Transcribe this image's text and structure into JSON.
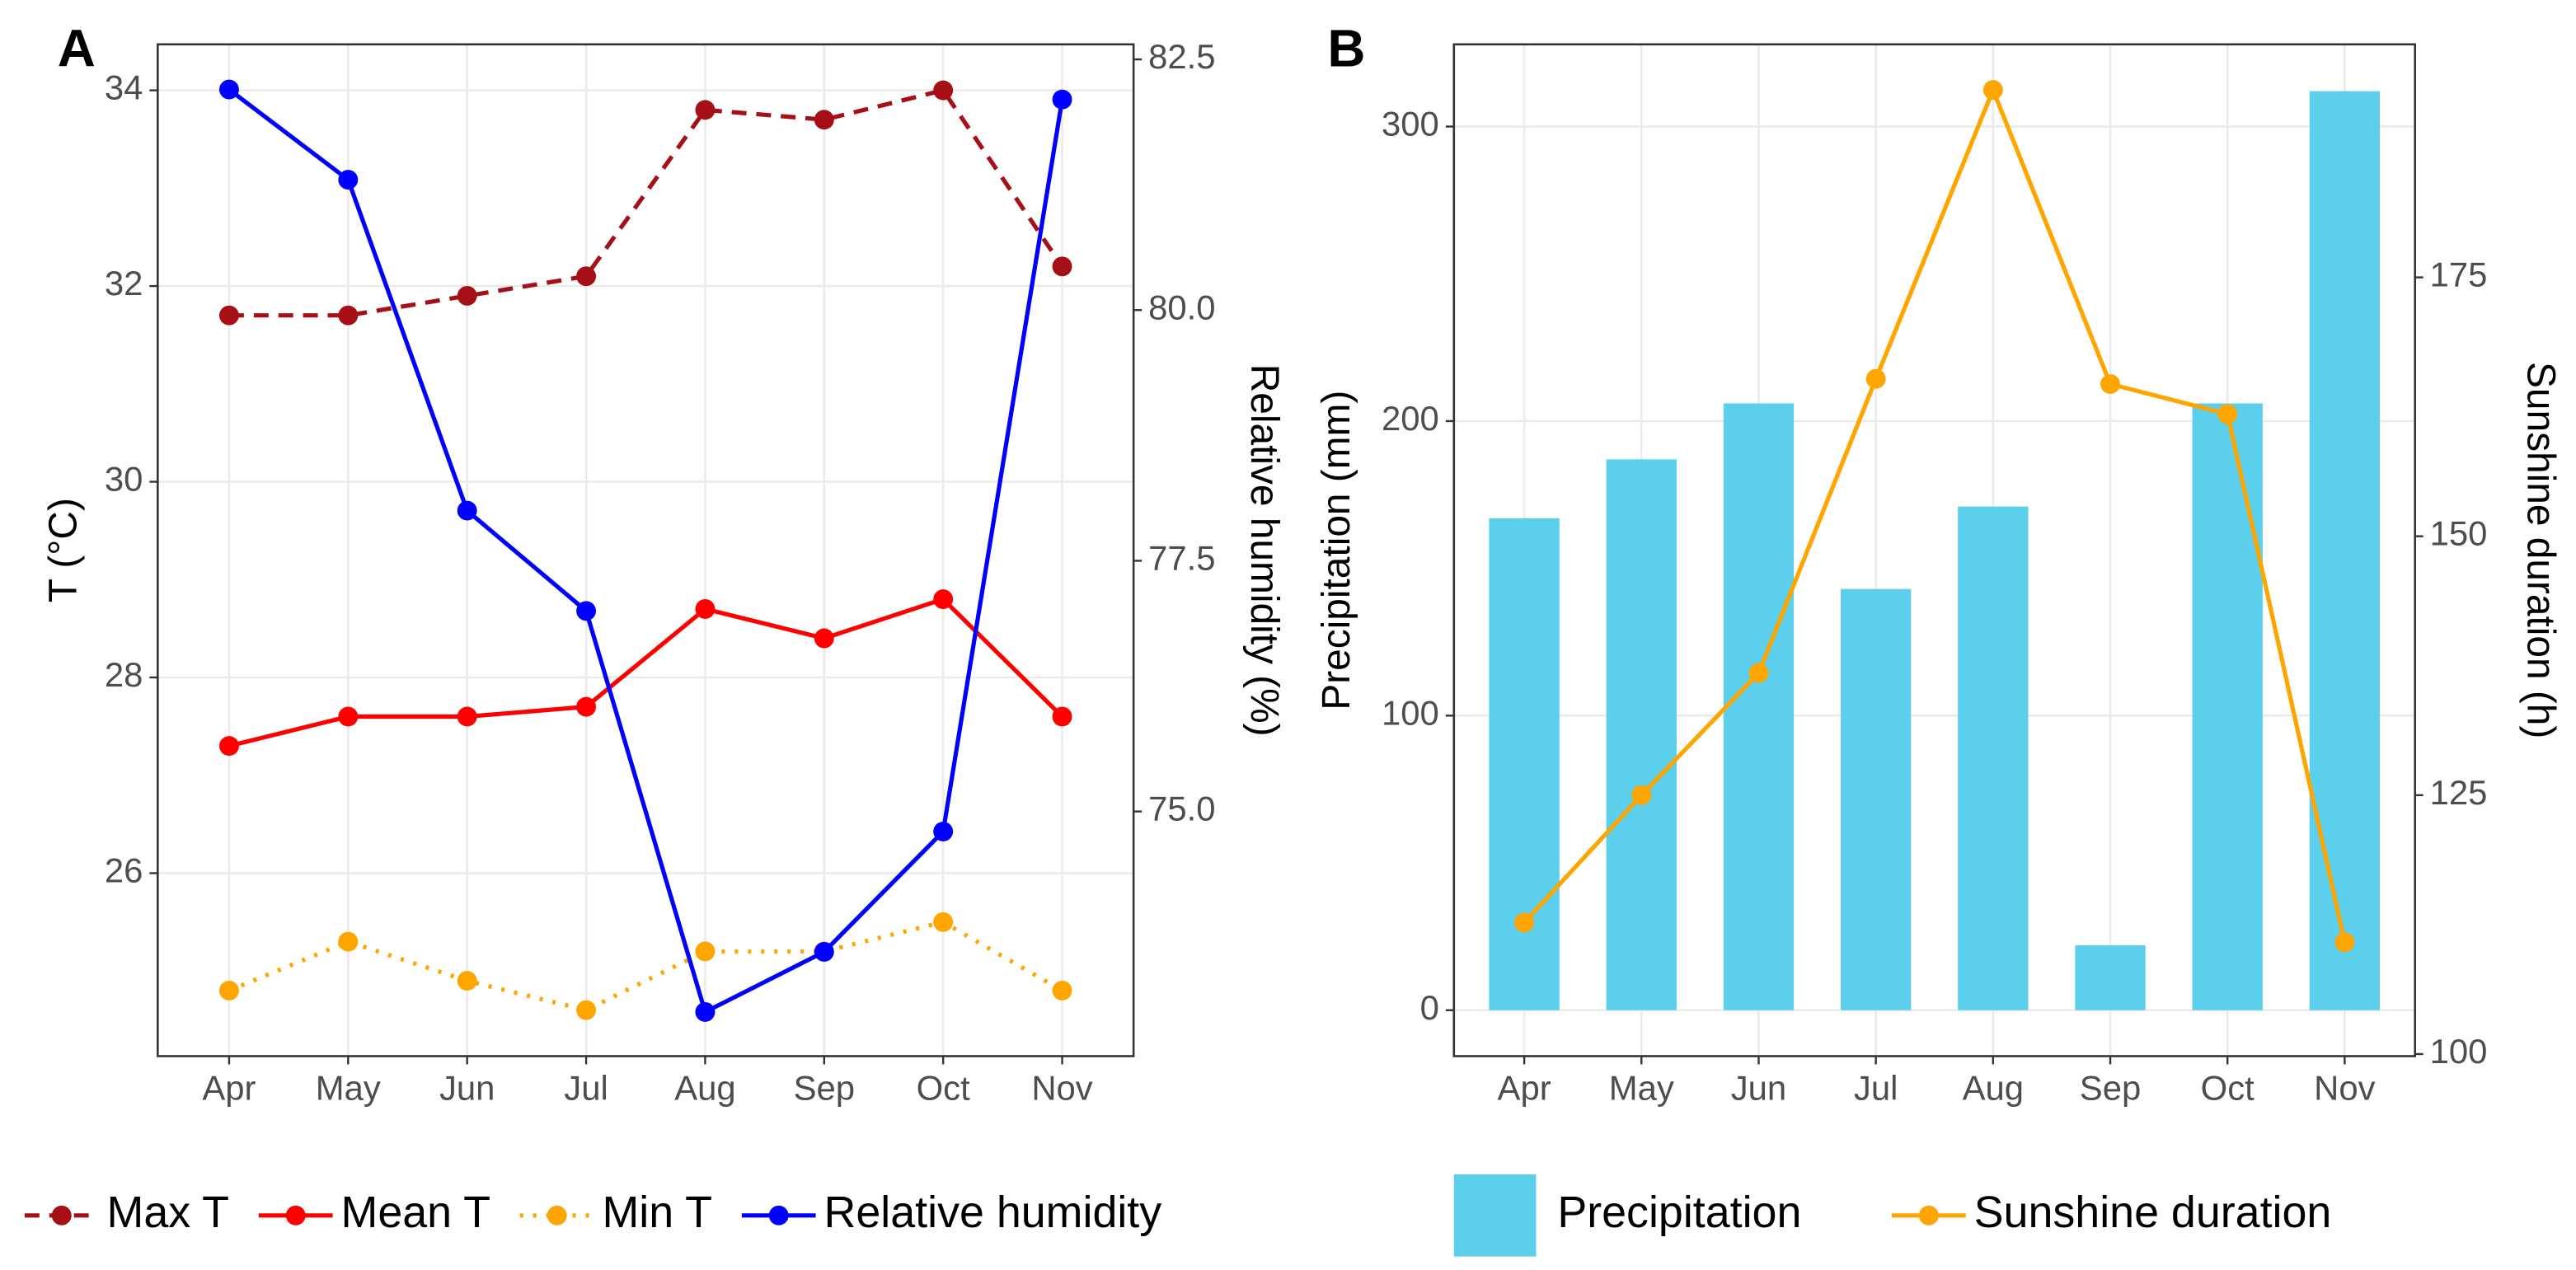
{
  "chart_data": [
    {
      "type": "line",
      "tag": "A",
      "ylabel": "T (°C)",
      "y2label": "Relative humidity (%)",
      "categories": [
        "Apr",
        "May",
        "Jun",
        "Jul",
        "Aug",
        "Sep",
        "Oct",
        "Nov"
      ],
      "ylim": [
        24.13,
        34.47
      ],
      "yticks": [
        26,
        28,
        30,
        32,
        34
      ],
      "y2lim": [
        72.56,
        82.65
      ],
      "y2ticks": [
        {
          "value": 75,
          "label": "75.0"
        },
        77.5,
        {
          "value": 80,
          "label": "80.0"
        },
        82.5
      ],
      "grid": true,
      "legend": "bottom",
      "series": [
        {
          "name": "Max T",
          "color": "#a50f15",
          "linestyle": "dashed",
          "values": [
            31.7,
            31.7,
            31.9,
            32.1,
            33.8,
            33.7,
            34.0,
            32.2
          ]
        },
        {
          "name": "Mean T",
          "color": "#ff0000",
          "linestyle": "solid",
          "values": [
            27.3,
            27.6,
            27.6,
            27.7,
            28.7,
            28.4,
            28.8,
            27.6
          ]
        },
        {
          "name": "Min T",
          "color": "#ffa500",
          "linestyle": "dotted",
          "values": [
            24.8,
            25.3,
            24.9,
            24.6,
            25.2,
            25.2,
            25.5,
            24.8
          ]
        },
        {
          "name": "Relative humidity",
          "color": "#0000ff",
          "linestyle": "solid",
          "axis": "y2",
          "values": [
            82.2,
            81.3,
            78.0,
            77.0,
            73.0,
            73.6,
            74.8,
            82.1
          ]
        }
      ]
    },
    {
      "type": "combo",
      "tag": "B",
      "ylabel": "Precipitation (mm)",
      "y2label": "Sunshine duration (h)",
      "categories": [
        "Apr",
        "May",
        "Jun",
        "Jul",
        "Aug",
        "Sep",
        "Oct",
        "Nov"
      ],
      "ylim": [
        -15.6,
        327.9
      ],
      "yticks": [
        0,
        100,
        200,
        300
      ],
      "y2lim": [
        99.8,
        197.5
      ],
      "y2ticks": [
        100,
        125,
        150,
        175
      ],
      "grid": true,
      "legend": "bottom",
      "series": [
        {
          "name": "Precipitation",
          "color": "#5bcfeb",
          "kind": "bar",
          "values": [
            167,
            187,
            206,
            143,
            171,
            22,
            206,
            312
          ]
        },
        {
          "name": "Sunshine duration",
          "color": "#ffa500",
          "kind": "line",
          "linestyle": "solid",
          "axis": "y2",
          "values": [
            112.7,
            125.0,
            136.8,
            165.2,
            193.1,
            164.7,
            161.8,
            110.8
          ]
        }
      ]
    }
  ]
}
